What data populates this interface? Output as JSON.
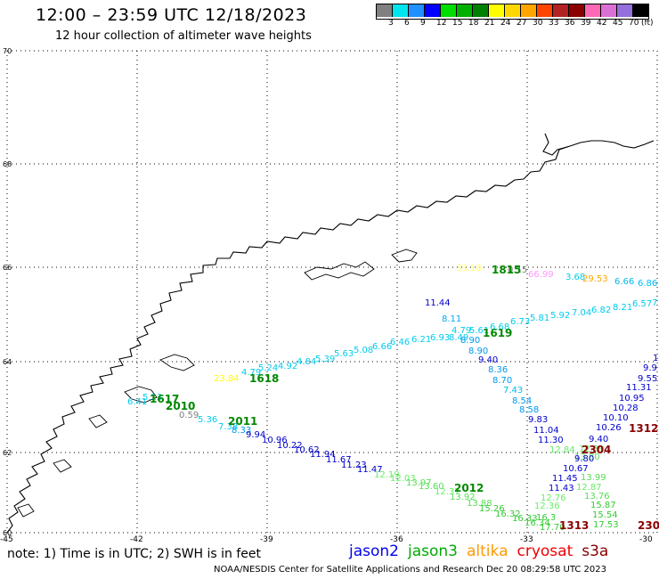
{
  "header": {
    "title": "12:00 – 23:59 UTC 12/18/2023",
    "subtitle": "12 hour collection of altimeter wave heights"
  },
  "colorbar": {
    "colors": [
      "#808080",
      "#00e5ee",
      "#1e90ff",
      "#0000ff",
      "#00dd00",
      "#00b000",
      "#008000",
      "#ffff00",
      "#ffd700",
      "#ffa500",
      "#ff4500",
      "#b22222",
      "#8b0000",
      "#ff69b4",
      "#da70d6",
      "#9370db",
      "#000000"
    ],
    "labels": [
      "3",
      "6",
      "9",
      "12",
      "15",
      "18",
      "21",
      "24",
      "27",
      "30",
      "33",
      "36",
      "39",
      "42",
      "45",
      "70",
      "(ft)"
    ]
  },
  "axes": {
    "lat_labels": [
      "70",
      "68",
      "66",
      "64",
      "62",
      "60"
    ],
    "lon_labels": [
      "-45",
      "-42",
      "-39",
      "-36",
      "-33",
      "-30"
    ]
  },
  "swh_labels": [
    {
      "t": "33.18",
      "c": "#ffff66"
    },
    {
      "t": "0.15",
      "c": "#808080"
    },
    {
      "t": "66.99",
      "c": "#ff99ff"
    },
    {
      "t": "3.68",
      "c": "#00ccee"
    },
    {
      "t": "29.53",
      "c": "#ffa500"
    },
    {
      "t": "6.66",
      "c": "#00bbee"
    },
    {
      "t": "6.86",
      "c": "#00bbee"
    },
    {
      "t": "11.44",
      "c": "#0000cc"
    },
    {
      "t": "8.11",
      "c": "#00aaee"
    },
    {
      "t": "4.79",
      "c": "#00ccee"
    },
    {
      "t": "5.61",
      "c": "#00ccee"
    },
    {
      "t": "6.68",
      "c": "#00ccee"
    },
    {
      "t": "6.73",
      "c": "#00ccee"
    },
    {
      "t": "5.81",
      "c": "#00ccee"
    },
    {
      "t": "5.92",
      "c": "#00ccee"
    },
    {
      "t": "7.04",
      "c": "#00ccee"
    },
    {
      "t": "6.82",
      "c": "#00ccee"
    },
    {
      "t": "8.21",
      "c": "#00ccee"
    },
    {
      "t": "6.57",
      "c": "#00ccee"
    },
    {
      "t": "7",
      "c": "#00ccee"
    },
    {
      "t": "6.21",
      "c": "#00ccee"
    },
    {
      "t": "6.93",
      "c": "#00ccee"
    },
    {
      "t": "8.49",
      "c": "#00ccee"
    },
    {
      "t": "8.90",
      "c": "#0099ee"
    },
    {
      "t": "6.46",
      "c": "#00ccee"
    },
    {
      "t": "6.66",
      "c": "#00ccee"
    },
    {
      "t": "5.08",
      "c": "#00ccee"
    },
    {
      "t": "5.63",
      "c": "#00ccee"
    },
    {
      "t": "5.39",
      "c": "#00ccee"
    },
    {
      "t": "4.84",
      "c": "#00ccee"
    },
    {
      "t": "4.92",
      "c": "#00ccee"
    },
    {
      "t": "5.24",
      "c": "#00ccee"
    },
    {
      "t": "4.79",
      "c": "#00ccee"
    },
    {
      "t": "8.90",
      "c": "#0099ee"
    },
    {
      "t": "9.40",
      "c": "#0000cc"
    },
    {
      "t": "8.36",
      "c": "#0099ee"
    },
    {
      "t": "8.70",
      "c": "#0099ee"
    },
    {
      "t": "7.43",
      "c": "#00bbee"
    },
    {
      "t": "8.54",
      "c": "#0099ee"
    },
    {
      "t": "8.58",
      "c": "#0099ee"
    },
    {
      "t": "9.83",
      "c": "#0000cc"
    },
    {
      "t": "11.04",
      "c": "#0000cc"
    },
    {
      "t": "11.30",
      "c": "#0000cc"
    },
    {
      "t": "23.84",
      "c": "#ffff00"
    },
    {
      "t": "0.59",
      "c": "#808080"
    },
    {
      "t": "5.36",
      "c": "#00ccee"
    },
    {
      "t": "7.38",
      "c": "#00ccee"
    },
    {
      "t": "8.33",
      "c": "#0099ee"
    },
    {
      "t": "9.94",
      "c": "#0000cc"
    },
    {
      "t": "10.96",
      "c": "#0000cc"
    },
    {
      "t": "10.22",
      "c": "#0000cc"
    },
    {
      "t": "10.62",
      "c": "#0000cc"
    },
    {
      "t": "11.94",
      "c": "#0000cc"
    },
    {
      "t": "11.67",
      "c": "#0000cc"
    },
    {
      "t": "11.23",
      "c": "#0000cc"
    },
    {
      "t": "11.47",
      "c": "#0000cc"
    },
    {
      "t": "12.19",
      "c": "#66ee66"
    },
    {
      "t": "12.03",
      "c": "#66ee66"
    },
    {
      "t": "13.97",
      "c": "#55dd55"
    },
    {
      "t": "13.60",
      "c": "#55dd55"
    },
    {
      "t": "12.37",
      "c": "#66ee66"
    },
    {
      "t": "13.92",
      "c": "#55dd55"
    },
    {
      "t": "13.88",
      "c": "#55dd55"
    },
    {
      "t": "15.26",
      "c": "#33cc33"
    },
    {
      "t": "16.32",
      "c": "#33cc33"
    },
    {
      "t": "16.33",
      "c": "#33cc33"
    },
    {
      "t": "16.34",
      "c": "#33cc33"
    },
    {
      "t": "17.70",
      "c": "#33cc33"
    },
    {
      "t": "1",
      "c": "#0000cc"
    },
    {
      "t": "9.9",
      "c": "#0000cc"
    },
    {
      "t": "9.55",
      "c": "#0000cc"
    },
    {
      "t": "11.31",
      "c": "#0000cc"
    },
    {
      "t": "10.95",
      "c": "#0000cc"
    },
    {
      "t": "10.28",
      "c": "#0000cc"
    },
    {
      "t": "10.10",
      "c": "#0000cc"
    },
    {
      "t": "10.26",
      "c": "#0000cc"
    },
    {
      "t": "9.40",
      "c": "#0000cc"
    },
    {
      "t": "12.39",
      "c": "#66ee66"
    },
    {
      "t": "13.80",
      "c": "#55dd55"
    },
    {
      "t": "9.80",
      "c": "#0000cc"
    },
    {
      "t": "10.67",
      "c": "#0000cc"
    },
    {
      "t": "11.45",
      "c": "#0000cc"
    },
    {
      "t": "11.43",
      "c": "#0000cc"
    },
    {
      "t": "12.84",
      "c": "#66ee66"
    },
    {
      "t": "13.99",
      "c": "#55dd55"
    },
    {
      "t": "12.87",
      "c": "#66ee66"
    },
    {
      "t": "12.76",
      "c": "#66ee66"
    },
    {
      "t": "13.76",
      "c": "#55dd55"
    },
    {
      "t": "12.36",
      "c": "#66ee66"
    },
    {
      "t": "15.87",
      "c": "#33cc33"
    },
    {
      "t": "15.54",
      "c": "#33cc33"
    },
    {
      "t": "17.53",
      "c": "#33cc33"
    },
    {
      "t": "16.3",
      "c": "#33cc33"
    },
    {
      "t": "6.41",
      "c": "#00ccee"
    },
    {
      "t": "5.13",
      "c": "#00ccee"
    }
  ],
  "time_labels": [
    {
      "t": "1815",
      "c": "#008800"
    },
    {
      "t": "1619",
      "c": "#008800"
    },
    {
      "t": "1618",
      "c": "#008800"
    },
    {
      "t": "2010",
      "c": "#008800"
    },
    {
      "t": "2011",
      "c": "#008800"
    },
    {
      "t": "1617",
      "c": "#008800"
    },
    {
      "t": "2012",
      "c": "#008800"
    },
    {
      "t": "1312",
      "c": "#8b0000"
    },
    {
      "t": "2304",
      "c": "#8b0000"
    },
    {
      "t": "1313",
      "c": "#8b0000"
    },
    {
      "t": "230",
      "c": "#8b0000"
    }
  ],
  "footer": {
    "note": "note:  1) Time is in UTC;  2) SWH is in feet",
    "satellites": [
      {
        "name": "jason2",
        "color": "#0000ee"
      },
      {
        "name": "jason3",
        "color": "#00aa00"
      },
      {
        "name": "altika",
        "color": "#ff9900"
      },
      {
        "name": "cryosat",
        "color": "#ee0000"
      },
      {
        "name": "s3a",
        "color": "#880000"
      }
    ],
    "credit": "NOAA/NESDIS Center for Satellite Applications and Research    Dec 20 08:29:58 UTC 2023"
  }
}
